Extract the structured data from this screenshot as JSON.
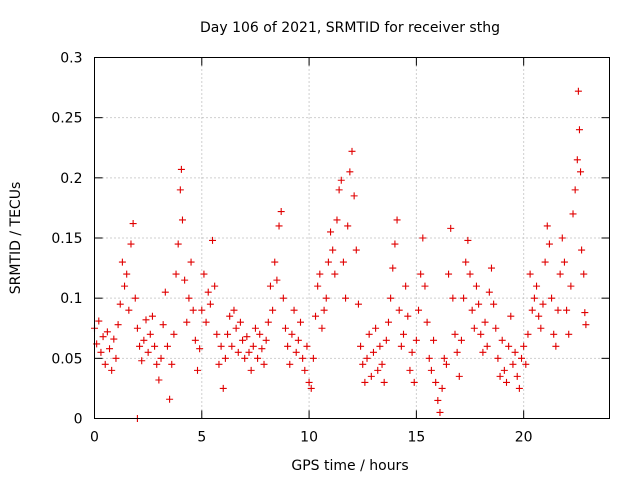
{
  "chart_data": {
    "type": "scatter",
    "title": "Day 106 of 2021, SRMTID for receiver sthg",
    "xlabel": "GPS time / hours",
    "ylabel": "SRMTID / TECUs",
    "xlim": [
      0,
      24
    ],
    "ylim": [
      0,
      0.3
    ],
    "xticks": [
      0,
      5,
      10,
      15,
      20
    ],
    "xtick_labels": [
      "0",
      "5",
      "10",
      "15",
      "20"
    ],
    "yticks": [
      0,
      0.05,
      0.1,
      0.15,
      0.2,
      0.25,
      0.3
    ],
    "ytick_labels": [
      "0",
      "0.05",
      "0.1",
      "0.15",
      "0.2",
      "0.25",
      "0.3"
    ],
    "grid": true,
    "marker": "plus",
    "color": "#e00000",
    "series": [
      {
        "name": "SRMTID",
        "points": [
          [
            0.0,
            0.075
          ],
          [
            0.1,
            0.062
          ],
          [
            0.2,
            0.081
          ],
          [
            0.3,
            0.055
          ],
          [
            0.4,
            0.068
          ],
          [
            0.5,
            0.045
          ],
          [
            0.6,
            0.072
          ],
          [
            0.7,
            0.058
          ],
          [
            0.8,
            0.04
          ],
          [
            0.9,
            0.066
          ],
          [
            1.0,
            0.05
          ],
          [
            1.1,
            0.078
          ],
          [
            1.2,
            0.095
          ],
          [
            1.3,
            0.13
          ],
          [
            1.4,
            0.11
          ],
          [
            1.5,
            0.12
          ],
          [
            1.6,
            0.09
          ],
          [
            1.7,
            0.145
          ],
          [
            1.8,
            0.162
          ],
          [
            1.9,
            0.1
          ],
          [
            2.0,
            0.075
          ],
          [
            2.1,
            0.06
          ],
          [
            2.2,
            0.048
          ],
          [
            2.3,
            0.065
          ],
          [
            2.4,
            0.082
          ],
          [
            2.5,
            0.055
          ],
          [
            2.6,
            0.07
          ],
          [
            2.7,
            0.085
          ],
          [
            2.8,
            0.06
          ],
          [
            2.9,
            0.045
          ],
          [
            3.0,
            0.032
          ],
          [
            3.1,
            0.05
          ],
          [
            3.2,
            0.078
          ],
          [
            3.3,
            0.105
          ],
          [
            3.4,
            0.06
          ],
          [
            3.5,
            0.016
          ],
          [
            3.6,
            0.045
          ],
          [
            3.7,
            0.07
          ],
          [
            3.8,
            0.12
          ],
          [
            3.9,
            0.145
          ],
          [
            4.0,
            0.19
          ],
          [
            4.05,
            0.207
          ],
          [
            4.1,
            0.165
          ],
          [
            4.2,
            0.115
          ],
          [
            4.3,
            0.08
          ],
          [
            4.4,
            0.1
          ],
          [
            4.5,
            0.13
          ],
          [
            4.6,
            0.09
          ],
          [
            4.7,
            0.065
          ],
          [
            4.8,
            0.04
          ],
          [
            4.9,
            0.058
          ],
          [
            5.0,
            0.09
          ],
          [
            5.1,
            0.12
          ],
          [
            5.2,
            0.08
          ],
          [
            5.3,
            0.105
          ],
          [
            5.4,
            0.095
          ],
          [
            5.5,
            0.148
          ],
          [
            5.6,
            0.11
          ],
          [
            5.7,
            0.07
          ],
          [
            5.8,
            0.045
          ],
          [
            5.9,
            0.06
          ],
          [
            6.0,
            0.025
          ],
          [
            6.1,
            0.05
          ],
          [
            6.2,
            0.07
          ],
          [
            6.3,
            0.085
          ],
          [
            6.4,
            0.06
          ],
          [
            6.5,
            0.09
          ],
          [
            6.6,
            0.075
          ],
          [
            6.7,
            0.055
          ],
          [
            6.8,
            0.08
          ],
          [
            6.9,
            0.065
          ],
          [
            7.0,
            0.05
          ],
          [
            7.1,
            0.068
          ],
          [
            7.2,
            0.055
          ],
          [
            7.3,
            0.04
          ],
          [
            7.4,
            0.06
          ],
          [
            7.5,
            0.075
          ],
          [
            7.6,
            0.05
          ],
          [
            7.7,
            0.07
          ],
          [
            7.8,
            0.058
          ],
          [
            7.9,
            0.045
          ],
          [
            8.0,
            0.065
          ],
          [
            8.1,
            0.08
          ],
          [
            8.2,
            0.11
          ],
          [
            8.3,
            0.09
          ],
          [
            8.4,
            0.13
          ],
          [
            8.5,
            0.115
          ],
          [
            8.6,
            0.16
          ],
          [
            8.7,
            0.172
          ],
          [
            8.8,
            0.1
          ],
          [
            8.9,
            0.075
          ],
          [
            9.0,
            0.06
          ],
          [
            9.1,
            0.045
          ],
          [
            9.2,
            0.07
          ],
          [
            9.3,
            0.09
          ],
          [
            9.4,
            0.055
          ],
          [
            9.5,
            0.065
          ],
          [
            9.6,
            0.08
          ],
          [
            9.7,
            0.05
          ],
          [
            9.8,
            0.04
          ],
          [
            9.9,
            0.06
          ],
          [
            10.0,
            0.03
          ],
          [
            10.1,
            0.025
          ],
          [
            10.2,
            0.05
          ],
          [
            10.3,
            0.085
          ],
          [
            10.4,
            0.11
          ],
          [
            10.5,
            0.12
          ],
          [
            10.6,
            0.075
          ],
          [
            10.7,
            0.09
          ],
          [
            10.8,
            0.1
          ],
          [
            10.9,
            0.13
          ],
          [
            11.0,
            0.155
          ],
          [
            11.1,
            0.14
          ],
          [
            11.2,
            0.12
          ],
          [
            11.3,
            0.165
          ],
          [
            11.4,
            0.19
          ],
          [
            11.5,
            0.198
          ],
          [
            11.6,
            0.13
          ],
          [
            11.7,
            0.1
          ],
          [
            11.8,
            0.16
          ],
          [
            11.9,
            0.205
          ],
          [
            12.0,
            0.222
          ],
          [
            12.1,
            0.185
          ],
          [
            12.2,
            0.14
          ],
          [
            12.3,
            0.095
          ],
          [
            12.4,
            0.06
          ],
          [
            12.5,
            0.045
          ],
          [
            12.6,
            0.03
          ],
          [
            12.7,
            0.05
          ],
          [
            12.8,
            0.07
          ],
          [
            12.9,
            0.035
          ],
          [
            13.0,
            0.055
          ],
          [
            13.1,
            0.075
          ],
          [
            13.2,
            0.04
          ],
          [
            13.3,
            0.06
          ],
          [
            13.4,
            0.045
          ],
          [
            13.5,
            0.03
          ],
          [
            13.6,
            0.065
          ],
          [
            13.7,
            0.08
          ],
          [
            13.8,
            0.1
          ],
          [
            13.9,
            0.125
          ],
          [
            14.0,
            0.145
          ],
          [
            14.1,
            0.165
          ],
          [
            14.2,
            0.09
          ],
          [
            14.3,
            0.06
          ],
          [
            14.4,
            0.07
          ],
          [
            14.5,
            0.11
          ],
          [
            14.6,
            0.085
          ],
          [
            14.7,
            0.04
          ],
          [
            14.8,
            0.055
          ],
          [
            14.9,
            0.03
          ],
          [
            15.0,
            0.065
          ],
          [
            15.1,
            0.09
          ],
          [
            15.2,
            0.12
          ],
          [
            15.3,
            0.15
          ],
          [
            15.4,
            0.11
          ],
          [
            15.5,
            0.08
          ],
          [
            15.6,
            0.05
          ],
          [
            15.7,
            0.04
          ],
          [
            15.8,
            0.065
          ],
          [
            15.9,
            0.03
          ],
          [
            16.0,
            0.015
          ],
          [
            16.1,
            0.005
          ],
          [
            16.2,
            0.025
          ],
          [
            16.3,
            0.05
          ],
          [
            16.4,
            0.045
          ],
          [
            16.5,
            0.12
          ],
          [
            16.6,
            0.158
          ],
          [
            16.7,
            0.1
          ],
          [
            16.8,
            0.07
          ],
          [
            16.9,
            0.055
          ],
          [
            17.0,
            0.035
          ],
          [
            17.1,
            0.065
          ],
          [
            17.2,
            0.1
          ],
          [
            17.3,
            0.13
          ],
          [
            17.4,
            0.148
          ],
          [
            17.5,
            0.12
          ],
          [
            17.6,
            0.09
          ],
          [
            17.7,
            0.075
          ],
          [
            17.8,
            0.11
          ],
          [
            17.9,
            0.095
          ],
          [
            18.0,
            0.07
          ],
          [
            18.1,
            0.055
          ],
          [
            18.2,
            0.08
          ],
          [
            18.3,
            0.06
          ],
          [
            18.4,
            0.105
          ],
          [
            18.5,
            0.125
          ],
          [
            18.6,
            0.095
          ],
          [
            18.7,
            0.075
          ],
          [
            18.8,
            0.05
          ],
          [
            18.9,
            0.035
          ],
          [
            19.0,
            0.065
          ],
          [
            19.1,
            0.04
          ],
          [
            19.2,
            0.03
          ],
          [
            19.3,
            0.06
          ],
          [
            19.4,
            0.085
          ],
          [
            19.5,
            0.045
          ],
          [
            19.6,
            0.055
          ],
          [
            19.7,
            0.035
          ],
          [
            19.8,
            0.025
          ],
          [
            19.9,
            0.05
          ],
          [
            20.0,
            0.06
          ],
          [
            20.1,
            0.045
          ],
          [
            20.2,
            0.07
          ],
          [
            20.3,
            0.12
          ],
          [
            20.4,
            0.09
          ],
          [
            20.5,
            0.1
          ],
          [
            20.6,
            0.11
          ],
          [
            20.7,
            0.085
          ],
          [
            20.8,
            0.075
          ],
          [
            20.9,
            0.095
          ],
          [
            21.0,
            0.13
          ],
          [
            21.1,
            0.16
          ],
          [
            21.2,
            0.145
          ],
          [
            21.3,
            0.1
          ],
          [
            21.4,
            0.07
          ],
          [
            21.5,
            0.06
          ],
          [
            21.6,
            0.09
          ],
          [
            21.7,
            0.12
          ],
          [
            21.8,
            0.15
          ],
          [
            21.9,
            0.13
          ],
          [
            22.0,
            0.09
          ],
          [
            22.1,
            0.07
          ],
          [
            22.2,
            0.11
          ],
          [
            22.3,
            0.17
          ],
          [
            22.4,
            0.19
          ],
          [
            22.5,
            0.215
          ],
          [
            22.55,
            0.272
          ],
          [
            22.6,
            0.24
          ],
          [
            22.65,
            0.205
          ],
          [
            22.7,
            0.14
          ],
          [
            22.8,
            0.12
          ],
          [
            22.85,
            0.088
          ],
          [
            22.9,
            0.078
          ],
          [
            2.0,
            0.0
          ]
        ]
      }
    ]
  }
}
